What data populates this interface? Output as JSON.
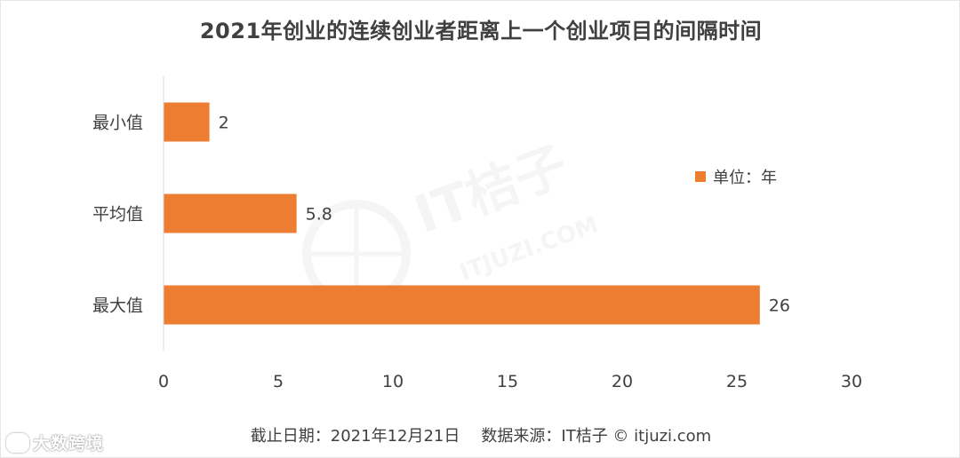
{
  "title": "2021年创业的连续创业者距离上一个创业项目的间隔时间",
  "legend": {
    "label": "单位：年",
    "color": "#ED7D31"
  },
  "footer": {
    "date_text": "截止日期：2021年12月21日",
    "source_text": "数据来源：IT桔子 © itjuzi.com"
  },
  "watermarks": {
    "center_logo_text": "IT桔子",
    "center_logo_url": "ITJUZI.COM",
    "corner_text": "大数跨境"
  },
  "chart_data": {
    "type": "bar",
    "orientation": "horizontal",
    "categories": [
      "最小值",
      "平均值",
      "最大值"
    ],
    "values": [
      2,
      5.8,
      26
    ],
    "data_labels": [
      "2",
      "5.8",
      "26"
    ],
    "xlim": [
      0,
      30
    ],
    "xticks": [
      "0",
      "5",
      "10",
      "15",
      "20",
      "25",
      "30"
    ],
    "grid": false,
    "legend_position": "right",
    "bar_color": "#ED7D31",
    "title": "2021年创业的连续创业者距离上一个创业项目的间隔时间",
    "xlabel": "",
    "ylabel": ""
  }
}
